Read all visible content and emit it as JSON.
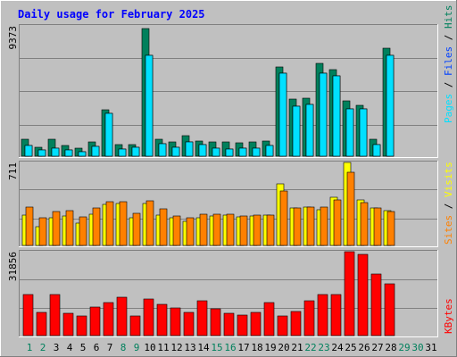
{
  "colors": {
    "background": "#C0C0C0",
    "frame_light": "#FFFFFF",
    "frame_dark": "#808080",
    "hits": "#00805C",
    "files": "#0040FF",
    "pages": "#00E0FF",
    "visits": "#FFFF00",
    "sites": "#FF8000",
    "kbytes": "#FF0000",
    "title": "#0000FF",
    "text": "#000000",
    "weekend_label": "#00805C"
  },
  "chart_data": {
    "type": "bar",
    "title": "Daily usage for February 2025",
    "categories": [
      "1",
      "2",
      "3",
      "4",
      "5",
      "6",
      "7",
      "8",
      "9",
      "10",
      "11",
      "12",
      "13",
      "14",
      "15",
      "16",
      "17",
      "18",
      "19",
      "20",
      "21",
      "22",
      "23",
      "24",
      "25",
      "26",
      "27",
      "28",
      "29",
      "30",
      "31"
    ],
    "weekend_days": [
      "1",
      "2",
      "8",
      "9",
      "15",
      "16",
      "22",
      "23",
      "29",
      "30"
    ],
    "panels": [
      {
        "id": "hits_files_pages",
        "ylabel_parts": [
          {
            "text": "Pages",
            "color_key": "pages"
          },
          {
            "text": " / ",
            "color_key": "text"
          },
          {
            "text": "Files",
            "color_key": "files"
          },
          {
            "text": " / ",
            "color_key": "text"
          },
          {
            "text": "Hits",
            "color_key": "hits"
          }
        ],
        "ymax_label": "9373",
        "ylim": [
          0,
          9373
        ],
        "series": [
          {
            "name": "Hits",
            "color_key": "hits",
            "values": [
              1200,
              650,
              1250,
              750,
              600,
              1050,
              3350,
              850,
              850,
              9150,
              1250,
              1000,
              1450,
              1100,
              1000,
              1000,
              950,
              1000,
              1100,
              6450,
              4100,
              4200,
              6650,
              6200,
              4000,
              3650,
              1200,
              7800,
              null,
              null,
              null
            ]
          },
          {
            "name": "Files",
            "color_key": "files",
            "values": [
              750,
              450,
              550,
              450,
              300,
              700,
              3100,
              500,
              650,
              7250,
              900,
              650,
              1050,
              850,
              550,
              500,
              550,
              600,
              750,
              5950,
              3600,
              3750,
              5950,
              5750,
              3400,
              3400,
              850,
              7250,
              null,
              null,
              null
            ]
          },
          {
            "name": "Pages",
            "color_key": "pages",
            "values": [
              750,
              450,
              550,
              450,
              300,
              700,
              3100,
              500,
              650,
              7250,
              900,
              650,
              1050,
              850,
              550,
              500,
              550,
              600,
              750,
              5950,
              3600,
              3750,
              5950,
              5750,
              3400,
              3400,
              850,
              7250,
              null,
              null,
              null
            ]
          }
        ]
      },
      {
        "id": "visits_sites",
        "ylabel_parts": [
          {
            "text": "Sites",
            "color_key": "sites"
          },
          {
            "text": " / ",
            "color_key": "text"
          },
          {
            "text": "Visits",
            "color_key": "visits"
          }
        ],
        "ymax_label": "711",
        "ylim": [
          0,
          711
        ],
        "series": [
          {
            "name": "Visits",
            "color_key": "visits",
            "values": [
              258,
              164,
              234,
              253,
              192,
              270,
              354,
              362,
              240,
              363,
              262,
              240,
              206,
              234,
              253,
              261,
              247,
              249,
              258,
              525,
              321,
              326,
              304,
              416,
              711,
              390,
              322,
              301,
              null,
              null,
              null
            ]
          },
          {
            "name": "Sites",
            "color_key": "sites",
            "values": [
              328,
              234,
              290,
              298,
              247,
              320,
              372,
              372,
              274,
              383,
              311,
              253,
              240,
              267,
              271,
              269,
              255,
              261,
              262,
              470,
              322,
              332,
              326,
              391,
              628,
              364,
              323,
              292,
              null,
              null,
              null
            ]
          }
        ]
      },
      {
        "id": "kbytes",
        "ylabel_parts": [
          {
            "text": "KBytes",
            "color_key": "kbytes"
          }
        ],
        "ymax_label": "31856",
        "ylim": [
          0,
          31856
        ],
        "series": [
          {
            "name": "KBytes",
            "color_key": "kbytes",
            "values": [
              15600,
              8800,
              15600,
              8400,
              7300,
              10900,
              12400,
              14600,
              7300,
              13800,
              11900,
              10600,
              8800,
              13300,
              10200,
              8400,
              7900,
              8800,
              12400,
              7300,
              9300,
              13300,
              15600,
              15600,
              31856,
              31000,
              23300,
              19600,
              null,
              null,
              null
            ]
          }
        ]
      }
    ],
    "grid": true
  }
}
